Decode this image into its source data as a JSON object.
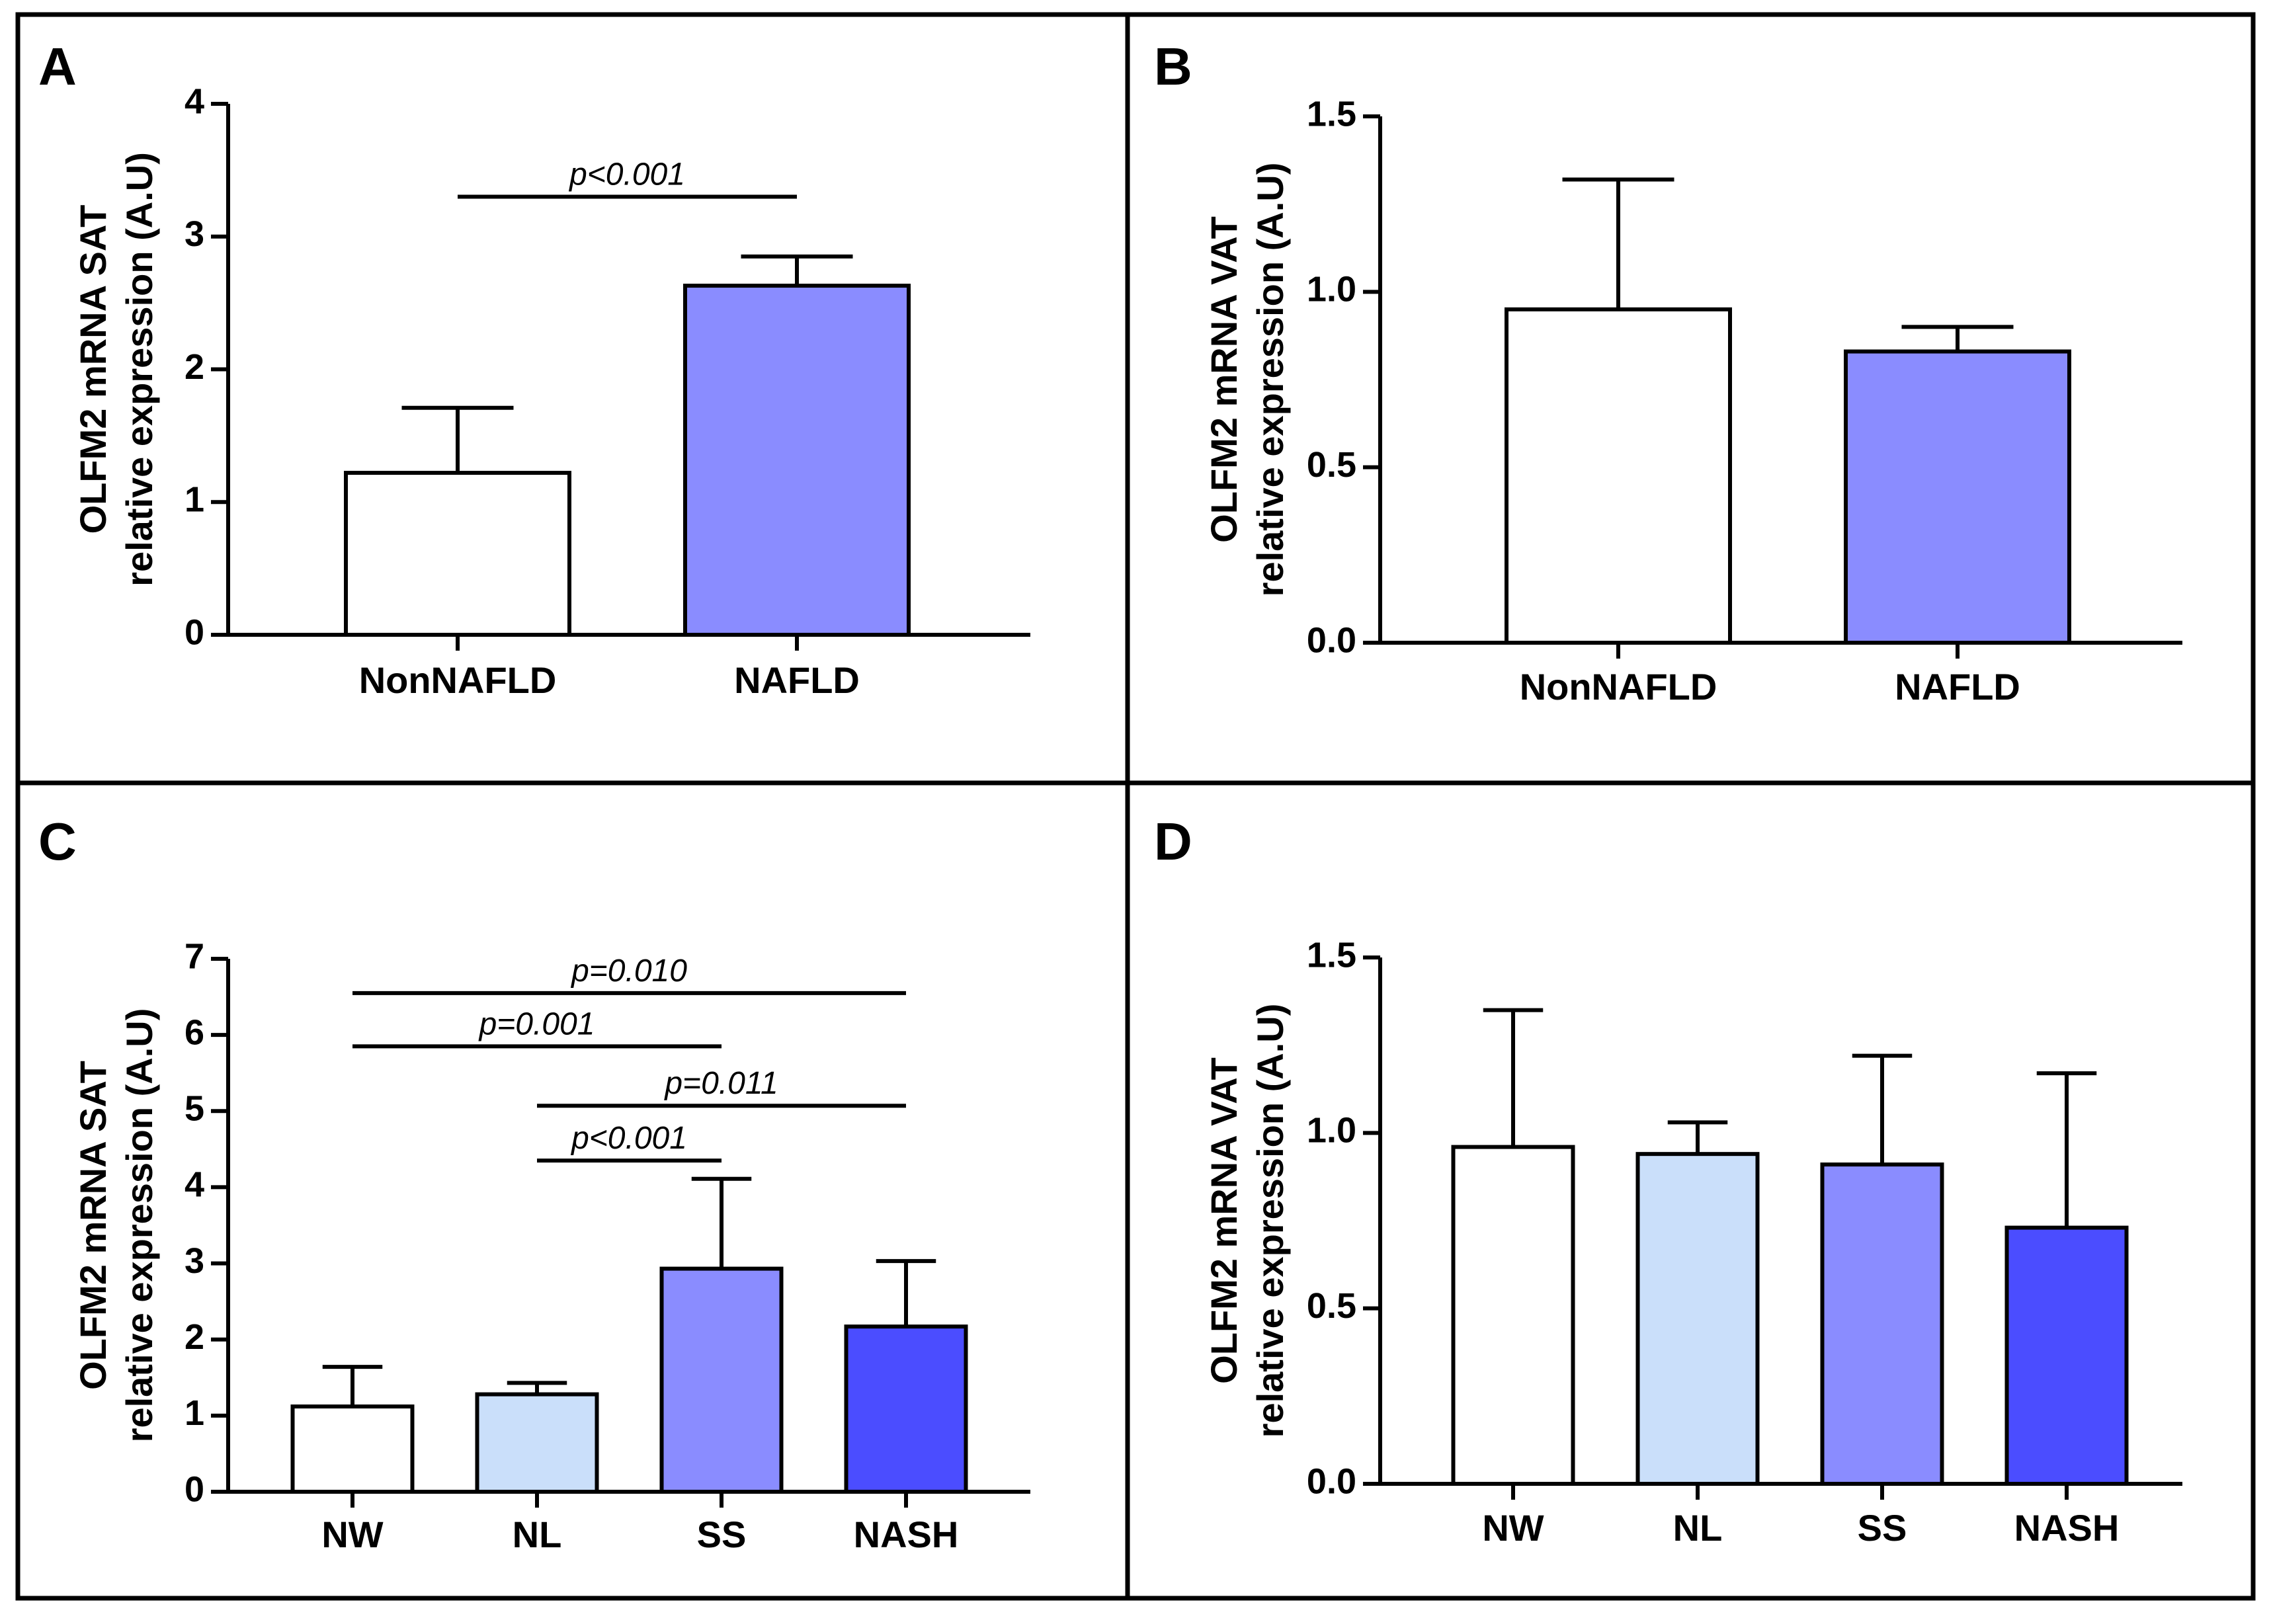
{
  "figure": {
    "panels_order": [
      "A",
      "B",
      "C",
      "D"
    ]
  },
  "chart_data": [
    {
      "panel": "A",
      "type": "bar",
      "categories": [
        "NonNAFLD",
        "NAFLD"
      ],
      "values": [
        1.22,
        2.63
      ],
      "error": [
        0.49,
        0.22
      ],
      "colors": [
        "#ffffff",
        "#8a8cff"
      ],
      "ylabel_lines": [
        "OLFM2 mRNA SAT",
        "relative expression (A.U)"
      ],
      "ylim": [
        0,
        4
      ],
      "yticks": [
        0,
        1,
        2,
        3,
        4
      ],
      "ytick_labels": [
        "0",
        "1",
        "2",
        "3",
        "4"
      ],
      "significance": [
        {
          "from": 0,
          "to": 1,
          "y": 3.3,
          "label": "p<0.001"
        }
      ]
    },
    {
      "panel": "B",
      "type": "bar",
      "categories": [
        "NonNAFLD",
        "NAFLD"
      ],
      "values": [
        0.95,
        0.83
      ],
      "error": [
        0.37,
        0.07
      ],
      "colors": [
        "#ffffff",
        "#8a8cff"
      ],
      "ylabel_lines": [
        "OLFM2 mRNA VAT",
        "relative expression (A.U)"
      ],
      "ylim": [
        0,
        1.5
      ],
      "yticks": [
        0,
        0.5,
        1.0,
        1.5
      ],
      "ytick_labels": [
        "0.0",
        "0.5",
        "1.0",
        "1.5"
      ],
      "significance": []
    },
    {
      "panel": "C",
      "type": "bar",
      "categories": [
        "NW",
        "NL",
        "SS",
        "NASH"
      ],
      "values": [
        1.12,
        1.28,
        2.93,
        2.17
      ],
      "error": [
        0.52,
        0.15,
        1.18,
        0.86
      ],
      "colors": [
        "#ffffff",
        "#cadffa",
        "#8a8cff",
        "#4b4dff"
      ],
      "ylabel_lines": [
        "OLFM2 mRNA SAT",
        "relative expression (A.U)"
      ],
      "ylim": [
        0,
        7
      ],
      "yticks": [
        0,
        1,
        2,
        3,
        4,
        5,
        6,
        7
      ],
      "ytick_labels": [
        "0",
        "1",
        "2",
        "3",
        "4",
        "5",
        "6",
        "7"
      ],
      "significance": [
        {
          "from": 0,
          "to": 3,
          "y": 6.55,
          "label": "p=0.010"
        },
        {
          "from": 0,
          "to": 2,
          "y": 5.85,
          "label": "p=0.001"
        },
        {
          "from": 1,
          "to": 3,
          "y": 5.07,
          "label": "p=0.011"
        },
        {
          "from": 1,
          "to": 2,
          "y": 4.35,
          "label": "p<0.001"
        }
      ]
    },
    {
      "panel": "D",
      "type": "bar",
      "categories": [
        "NW",
        "NL",
        "SS",
        "NASH"
      ],
      "values": [
        0.96,
        0.94,
        0.91,
        0.73
      ],
      "error": [
        0.39,
        0.09,
        0.31,
        0.44
      ],
      "colors": [
        "#ffffff",
        "#cadffa",
        "#8a8cff",
        "#4b4dff"
      ],
      "ylabel_lines": [
        "OLFM2 mRNA VAT",
        "relative expression (A.U)"
      ],
      "ylim": [
        0,
        1.5
      ],
      "yticks": [
        0,
        0.5,
        1.0,
        1.5
      ],
      "ytick_labels": [
        "0.0",
        "0.5",
        "1.0",
        "1.5"
      ],
      "significance": []
    }
  ]
}
